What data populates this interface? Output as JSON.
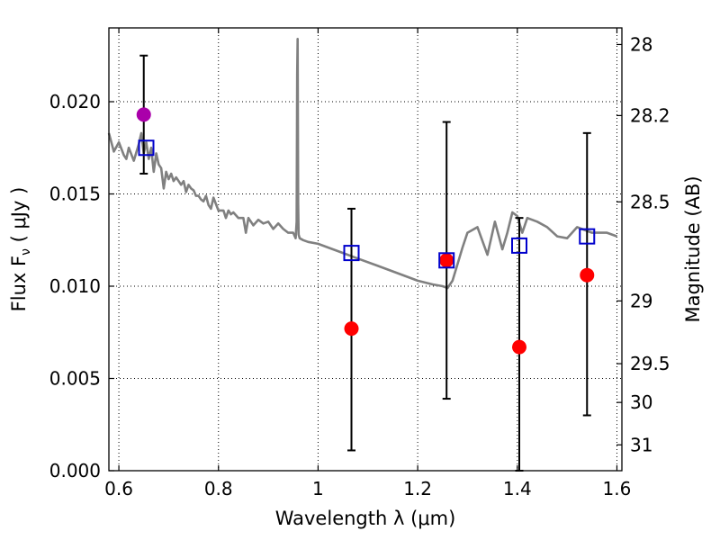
{
  "chart_data": {
    "type": "scatter",
    "title": "",
    "xlabel": "Wavelength  λ (μm)",
    "ylabel": "Flux  F",
    "ylabel_sub": "ν",
    "ylabel_unit": "  ( μJy )",
    "y2label": "Magnitude (AB)",
    "xlim": [
      0.58,
      1.61
    ],
    "ylim": [
      0.0,
      0.024
    ],
    "grid": true,
    "x_ticks": [
      0.6,
      0.8,
      1.0,
      1.2,
      1.4,
      1.6
    ],
    "x_tick_labels": [
      "0.6",
      "0.8",
      "1",
      "1.2",
      "1.4",
      "1.6"
    ],
    "y_ticks": [
      0.0,
      0.005,
      0.01,
      0.015,
      0.02
    ],
    "y_tick_labels": [
      "0.000",
      "0.005",
      "0.010",
      "0.015",
      "0.020"
    ],
    "y2_ticks": [
      {
        "label": "28",
        "flux": 0.0231
      },
      {
        "label": "28.2",
        "flux": 0.01925
      },
      {
        "label": "28.5",
        "flux": 0.01457
      },
      {
        "label": "29",
        "flux": 0.0092
      },
      {
        "label": "29.5",
        "flux": 0.0058
      },
      {
        "label": "30",
        "flux": 0.0037
      },
      {
        "label": "31",
        "flux": 0.0014
      }
    ],
    "colors": {
      "model": "#808080",
      "photometry": "#ff0000",
      "magenta_point": "#aa00aa",
      "model_box": "#0000cc",
      "errorbar": "#000000"
    },
    "series": [
      {
        "name": "model spectrum",
        "kind": "line",
        "x": [
          0.58,
          0.59,
          0.6,
          0.61,
          0.615,
          0.62,
          0.63,
          0.64,
          0.645,
          0.65,
          0.655,
          0.66,
          0.665,
          0.67,
          0.675,
          0.68,
          0.685,
          0.69,
          0.695,
          0.7,
          0.705,
          0.71,
          0.715,
          0.72,
          0.725,
          0.73,
          0.735,
          0.74,
          0.745,
          0.75,
          0.755,
          0.76,
          0.765,
          0.77,
          0.775,
          0.78,
          0.785,
          0.79,
          0.8,
          0.81,
          0.815,
          0.82,
          0.825,
          0.83,
          0.84,
          0.85,
          0.855,
          0.86,
          0.87,
          0.88,
          0.89,
          0.9,
          0.91,
          0.92,
          0.93,
          0.94,
          0.95,
          0.955,
          0.957,
          0.958,
          0.959,
          0.96,
          0.961,
          0.963,
          0.97,
          0.98,
          1.0,
          1.02,
          1.05,
          1.08,
          1.12,
          1.16,
          1.2,
          1.23,
          1.25,
          1.26,
          1.27,
          1.28,
          1.29,
          1.3,
          1.32,
          1.34,
          1.355,
          1.37,
          1.38,
          1.39,
          1.4,
          1.41,
          1.42,
          1.44,
          1.46,
          1.48,
          1.5,
          1.52,
          1.55,
          1.58,
          1.6
        ],
        "y": [
          0.0183,
          0.0173,
          0.0178,
          0.0171,
          0.0169,
          0.0175,
          0.0168,
          0.0177,
          0.0183,
          0.0172,
          0.0178,
          0.0169,
          0.0175,
          0.0162,
          0.0172,
          0.0166,
          0.0164,
          0.0153,
          0.0162,
          0.0158,
          0.0161,
          0.0157,
          0.0159,
          0.0157,
          0.0155,
          0.0157,
          0.0151,
          0.0155,
          0.0153,
          0.0152,
          0.0149,
          0.0149,
          0.0147,
          0.0146,
          0.0149,
          0.0144,
          0.0142,
          0.0148,
          0.0141,
          0.0141,
          0.0137,
          0.0141,
          0.0139,
          0.014,
          0.0137,
          0.0137,
          0.0129,
          0.0137,
          0.0133,
          0.0136,
          0.0134,
          0.0135,
          0.0131,
          0.0134,
          0.0131,
          0.0129,
          0.0129,
          0.0126,
          0.0135,
          0.0215,
          0.0234,
          0.0145,
          0.0128,
          0.0126,
          0.0125,
          0.0124,
          0.0123,
          0.0121,
          0.0118,
          0.0115,
          0.0111,
          0.0107,
          0.0103,
          0.0101,
          0.01,
          0.0099,
          0.0103,
          0.0112,
          0.0121,
          0.0129,
          0.0132,
          0.0117,
          0.0135,
          0.012,
          0.0129,
          0.014,
          0.0138,
          0.0129,
          0.0137,
          0.0135,
          0.0132,
          0.0127,
          0.0126,
          0.0132,
          0.0129,
          0.0129,
          0.0127
        ]
      },
      {
        "name": "observed photometry",
        "kind": "points",
        "x": [
          0.65,
          1.067,
          1.258,
          1.404,
          1.54
        ],
        "y": [
          0.0193,
          0.0077,
          0.0114,
          0.0067,
          0.0106
        ],
        "highlight_index": 0
      },
      {
        "name": "model photometry",
        "kind": "boxes",
        "x": [
          0.655,
          1.067,
          1.258,
          1.404,
          1.54
        ],
        "y": [
          0.0175,
          0.0118,
          0.0114,
          0.0122,
          0.0127
        ]
      },
      {
        "name": "error bars",
        "kind": "errorbars",
        "x": [
          0.65,
          1.067,
          1.258,
          1.404,
          1.54
        ],
        "low": [
          0.0161,
          0.0011,
          0.0039,
          0.0,
          0.003
        ],
        "high": [
          0.0225,
          0.0142,
          0.0189,
          0.0137,
          0.0183
        ]
      }
    ]
  }
}
